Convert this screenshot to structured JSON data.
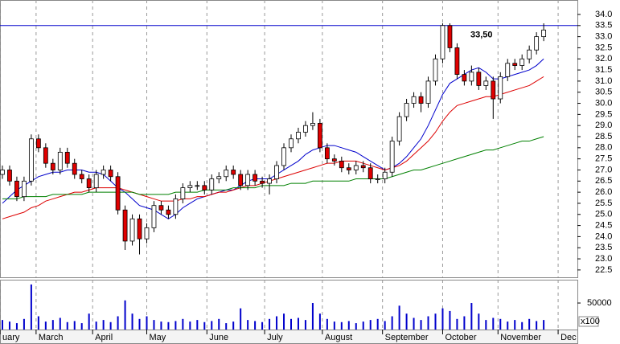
{
  "chart_data": {
    "type": "candlestick",
    "x": [
      1,
      4,
      7,
      10,
      13,
      16,
      19,
      22,
      25,
      28,
      31,
      34,
      37,
      40,
      43,
      46,
      49,
      52,
      55,
      58,
      61,
      64,
      67,
      70,
      73,
      76,
      79,
      82,
      85,
      88,
      91,
      94,
      97,
      100,
      103,
      106,
      109,
      112,
      115,
      118,
      121,
      124,
      127,
      130,
      133,
      136,
      139,
      142,
      145,
      148,
      151,
      154,
      157,
      160,
      163,
      166,
      169,
      172,
      175,
      178,
      181,
      184,
      187,
      190,
      193,
      196,
      199,
      202,
      205,
      208,
      211,
      214,
      217,
      220,
      223,
      226
    ],
    "open": [
      26.8,
      27.0,
      26.5,
      25.8,
      26.5,
      28.4,
      28.0,
      27.3,
      27.0,
      27.8,
      27.3,
      26.8,
      26.6,
      26.2,
      26.8,
      27.0,
      26.7,
      25.2,
      23.8,
      24.8,
      23.9,
      24.4,
      25.4,
      25.2,
      25.0,
      25.7,
      26.2,
      26.3,
      26.3,
      26.1,
      26.6,
      26.7,
      27.0,
      26.8,
      26.3,
      26.8,
      26.5,
      26.4,
      26.6,
      27.2,
      28.0,
      28.4,
      28.7,
      29.0,
      29.1,
      28.0,
      27.5,
      27.4,
      27.1,
      27.0,
      27.2,
      27.1,
      26.6,
      26.6,
      26.9,
      28.3,
      29.4,
      30.0,
      30.3,
      30.0,
      31.0,
      32.0,
      33.5,
      32.5,
      31.3,
      31.0,
      31.4,
      30.8,
      31.0,
      30.2,
      31.2,
      31.8,
      31.7,
      32.0,
      32.4,
      33.0
    ],
    "high": [
      27.2,
      27.2,
      26.7,
      26.7,
      28.6,
      28.6,
      28.2,
      27.5,
      28.0,
      28.0,
      27.5,
      27.0,
      26.8,
      27.0,
      27.2,
      27.2,
      26.9,
      25.4,
      25.0,
      25.0,
      24.6,
      25.6,
      25.6,
      25.4,
      25.9,
      26.4,
      26.5,
      26.5,
      26.5,
      26.8,
      26.9,
      27.2,
      27.2,
      27.0,
      27.0,
      27.0,
      26.7,
      26.8,
      27.4,
      28.2,
      28.6,
      28.9,
      29.2,
      29.6,
      29.3,
      28.2,
      27.7,
      27.6,
      27.3,
      27.4,
      27.4,
      27.3,
      26.8,
      27.1,
      28.5,
      29.6,
      30.2,
      30.5,
      30.5,
      31.2,
      32.2,
      33.6,
      33.6,
      32.7,
      31.5,
      31.7,
      31.6,
      31.2,
      31.2,
      31.4,
      32.0,
      32.0,
      32.2,
      32.6,
      33.2,
      33.6
    ],
    "low": [
      26.6,
      26.3,
      25.6,
      25.6,
      26.3,
      27.8,
      27.1,
      26.8,
      26.8,
      27.1,
      26.6,
      26.4,
      26.0,
      26.0,
      26.6,
      26.5,
      25.0,
      23.4,
      23.6,
      23.2,
      23.7,
      24.2,
      25.0,
      24.8,
      24.8,
      25.5,
      26.0,
      26.1,
      25.9,
      25.9,
      26.4,
      26.5,
      26.6,
      26.1,
      26.1,
      26.3,
      26.2,
      25.9,
      26.4,
      27.0,
      27.8,
      28.2,
      28.5,
      28.8,
      27.8,
      27.3,
      27.2,
      26.9,
      26.8,
      26.8,
      26.9,
      26.4,
      26.4,
      26.4,
      26.7,
      28.1,
      29.2,
      29.8,
      29.6,
      29.8,
      30.8,
      31.8,
      32.3,
      31.1,
      30.8,
      30.8,
      30.6,
      30.6,
      29.3,
      30.0,
      31.0,
      31.5,
      31.5,
      31.8,
      32.2,
      32.8
    ],
    "close": [
      27.0,
      26.5,
      25.8,
      26.5,
      28.4,
      28.0,
      27.3,
      27.0,
      27.8,
      27.3,
      26.8,
      26.6,
      26.2,
      26.8,
      27.0,
      26.7,
      25.2,
      23.8,
      24.8,
      23.9,
      24.4,
      25.4,
      25.2,
      25.0,
      25.7,
      26.2,
      26.3,
      26.3,
      26.1,
      26.6,
      26.7,
      27.0,
      26.8,
      26.3,
      26.8,
      26.5,
      26.4,
      26.6,
      27.2,
      28.0,
      28.4,
      28.7,
      29.0,
      29.1,
      28.0,
      27.5,
      27.4,
      27.1,
      27.0,
      27.2,
      27.1,
      26.6,
      26.6,
      26.9,
      28.3,
      29.4,
      30.0,
      30.3,
      30.0,
      31.0,
      32.0,
      33.5,
      32.5,
      31.3,
      31.0,
      31.4,
      30.8,
      31.0,
      30.2,
      31.2,
      31.8,
      31.7,
      32.0,
      32.4,
      33.0,
      33.3
    ],
    "up_color": "#ffffff",
    "down_color": "#e00000",
    "series": [
      {
        "color": "#0000cc",
        "values": [
          25.5,
          25.8,
          26.1,
          26.3,
          26.5,
          26.7,
          26.8,
          26.9,
          26.9,
          27.0,
          27.0,
          27.0,
          26.9,
          26.9,
          26.8,
          26.5,
          26.2,
          26.0,
          25.7,
          25.4,
          25.3,
          25.2,
          25.0,
          24.8,
          25.0,
          25.3,
          25.5,
          25.7,
          25.8,
          25.9,
          26.0,
          26.1,
          26.1,
          26.3,
          26.5,
          26.6,
          26.6,
          26.6,
          26.8,
          27.0,
          27.2,
          27.4,
          27.7,
          27.9,
          28.0,
          28.1,
          28.1,
          28.0,
          27.9,
          27.8,
          27.6,
          27.4,
          27.2,
          27.0,
          27.1,
          27.3,
          27.6,
          28.0,
          28.4,
          29.0,
          29.7,
          30.4,
          30.9,
          31.1,
          31.3,
          31.5,
          31.6,
          31.4,
          31.1,
          31.1,
          31.2,
          31.3,
          31.4,
          31.5,
          31.7,
          32.0
        ]
      },
      {
        "color": "#dd0000",
        "values": [
          24.8,
          24.9,
          25.0,
          25.1,
          25.3,
          25.4,
          25.6,
          25.7,
          25.8,
          25.9,
          26.0,
          26.0,
          26.1,
          26.2,
          26.2,
          26.2,
          26.2,
          26.1,
          26.0,
          25.9,
          25.8,
          25.7,
          25.6,
          25.6,
          25.6,
          25.7,
          25.7,
          25.8,
          25.8,
          25.9,
          26.0,
          26.0,
          26.1,
          26.2,
          26.3,
          26.3,
          26.4,
          26.5,
          26.6,
          26.7,
          26.8,
          26.9,
          27.0,
          27.1,
          27.2,
          27.3,
          27.3,
          27.4,
          27.4,
          27.4,
          27.3,
          27.2,
          27.1,
          27.0,
          27.1,
          27.2,
          27.4,
          27.7,
          28.0,
          28.3,
          28.7,
          29.2,
          29.6,
          29.9,
          30.0,
          30.1,
          30.2,
          30.3,
          30.3,
          30.4,
          30.5,
          30.6,
          30.7,
          30.8,
          31.0,
          31.2
        ]
      },
      {
        "color": "#008000",
        "values": [
          25.7,
          25.7,
          25.7,
          25.8,
          25.8,
          25.8,
          25.8,
          25.9,
          25.9,
          25.9,
          25.9,
          25.9,
          26.0,
          26.0,
          26.0,
          26.0,
          26.0,
          26.0,
          26.0,
          25.9,
          25.9,
          25.9,
          25.9,
          25.9,
          26.0,
          26.0,
          26.0,
          26.0,
          26.1,
          26.1,
          26.1,
          26.1,
          26.2,
          26.2,
          26.2,
          26.2,
          26.3,
          26.3,
          26.3,
          26.3,
          26.4,
          26.4,
          26.4,
          26.5,
          26.5,
          26.5,
          26.5,
          26.5,
          26.5,
          26.6,
          26.6,
          26.6,
          26.6,
          26.6,
          26.7,
          26.8,
          26.9,
          27.0,
          27.0,
          27.1,
          27.2,
          27.3,
          27.4,
          27.5,
          27.6,
          27.7,
          27.8,
          27.9,
          27.9,
          28.0,
          28.1,
          28.2,
          28.3,
          28.3,
          28.4,
          28.5
        ]
      }
    ],
    "xlim": [
      0,
      240
    ],
    "xticks": [
      {
        "value": 0,
        "label": "uary"
      },
      {
        "value": 15,
        "label": "March"
      },
      {
        "value": 38.5,
        "label": "April"
      },
      {
        "value": 61,
        "label": "May"
      },
      {
        "value": 86,
        "label": "June"
      },
      {
        "value": 110,
        "label": "July"
      },
      {
        "value": 134,
        "label": "August"
      },
      {
        "value": 159,
        "label": "September"
      },
      {
        "value": 184,
        "label": "October"
      },
      {
        "value": 207,
        "label": "November"
      },
      {
        "value": 232,
        "label": "Dec"
      }
    ],
    "xgrid": true,
    "ylim": [
      22.17,
      34.65
    ],
    "yticks": [
      22.5,
      {
        "value": 23,
        "label": "23.0"
      },
      23.5,
      {
        "value": 24,
        "label": "24.0"
      },
      24.5,
      {
        "value": 25,
        "label": "25.0"
      },
      25.5,
      {
        "value": 26,
        "label": "26.0"
      },
      26.5,
      {
        "value": 27,
        "label": "27.0"
      },
      27.5,
      {
        "value": 28,
        "label": "28.0"
      },
      28.5,
      {
        "value": 29,
        "label": "29.0"
      },
      29.5,
      {
        "value": 30,
        "label": "30.0"
      },
      30.5,
      {
        "value": 31,
        "label": "31.0"
      },
      31.5,
      {
        "value": 32,
        "label": "32.0"
      },
      32.5,
      {
        "value": 33,
        "label": "33.0"
      },
      33.5,
      {
        "value": 34,
        "label": "34.0"
      }
    ],
    "hline": {
      "value": 33.5,
      "label": "33,50",
      "color": "#0000cc"
    },
    "volume": {
      "color": "#0000cc",
      "ylim": [
        0,
        94000
      ],
      "yticks": [
        50000
      ],
      "unit_label": "x100",
      "values": [
        18000,
        15000,
        12000,
        20000,
        85000,
        25000,
        15000,
        18000,
        22000,
        14000,
        16000,
        12000,
        30000,
        15000,
        18000,
        14000,
        25000,
        55000,
        30000,
        20000,
        25000,
        18000,
        15000,
        14000,
        16000,
        20000,
        15000,
        18000,
        14000,
        16000,
        20000,
        12000,
        15000,
        40000,
        18000,
        16000,
        14000,
        20000,
        25000,
        30000,
        20000,
        22000,
        18000,
        50000,
        30000,
        20000,
        15000,
        14000,
        16000,
        12000,
        15000,
        18000,
        20000,
        16000,
        25000,
        45000,
        30000,
        22000,
        18000,
        25000,
        30000,
        40000,
        35000,
        20000,
        25000,
        50000,
        30000,
        18000,
        22000,
        20000,
        15000,
        18000,
        14000,
        20000,
        16000,
        18000
      ]
    }
  }
}
